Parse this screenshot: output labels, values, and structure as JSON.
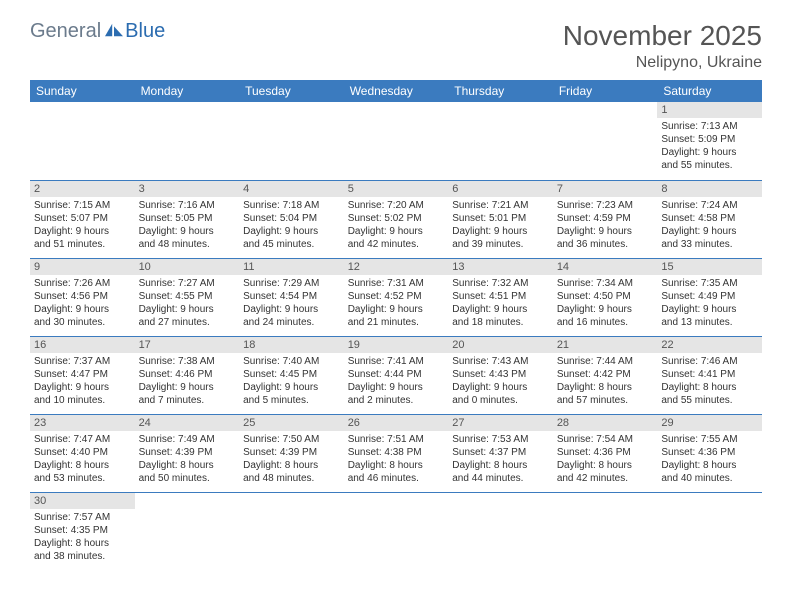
{
  "brand": {
    "part1": "General",
    "part2": "Blue"
  },
  "title": "November 2025",
  "location": "Nelipyno, Ukraine",
  "colors": {
    "header_bg": "#3b7bbf",
    "header_text": "#ffffff",
    "daynum_bg": "#e5e5e5",
    "border": "#3b7bbf",
    "body_text": "#333333",
    "title_text": "#555555",
    "logo_gray": "#6b7b8c",
    "logo_blue": "#2b6cb0",
    "background": "#ffffff"
  },
  "fonts": {
    "title_size_pt": 28,
    "location_size_pt": 16,
    "header_size_pt": 12,
    "cell_size_pt": 10,
    "family": "Arial"
  },
  "weekdays": [
    "Sunday",
    "Monday",
    "Tuesday",
    "Wednesday",
    "Thursday",
    "Friday",
    "Saturday"
  ],
  "weeks": [
    [
      null,
      null,
      null,
      null,
      null,
      null,
      {
        "n": "1",
        "sr": "Sunrise: 7:13 AM",
        "ss": "Sunset: 5:09 PM",
        "dl1": "Daylight: 9 hours",
        "dl2": "and 55 minutes."
      }
    ],
    [
      {
        "n": "2",
        "sr": "Sunrise: 7:15 AM",
        "ss": "Sunset: 5:07 PM",
        "dl1": "Daylight: 9 hours",
        "dl2": "and 51 minutes."
      },
      {
        "n": "3",
        "sr": "Sunrise: 7:16 AM",
        "ss": "Sunset: 5:05 PM",
        "dl1": "Daylight: 9 hours",
        "dl2": "and 48 minutes."
      },
      {
        "n": "4",
        "sr": "Sunrise: 7:18 AM",
        "ss": "Sunset: 5:04 PM",
        "dl1": "Daylight: 9 hours",
        "dl2": "and 45 minutes."
      },
      {
        "n": "5",
        "sr": "Sunrise: 7:20 AM",
        "ss": "Sunset: 5:02 PM",
        "dl1": "Daylight: 9 hours",
        "dl2": "and 42 minutes."
      },
      {
        "n": "6",
        "sr": "Sunrise: 7:21 AM",
        "ss": "Sunset: 5:01 PM",
        "dl1": "Daylight: 9 hours",
        "dl2": "and 39 minutes."
      },
      {
        "n": "7",
        "sr": "Sunrise: 7:23 AM",
        "ss": "Sunset: 4:59 PM",
        "dl1": "Daylight: 9 hours",
        "dl2": "and 36 minutes."
      },
      {
        "n": "8",
        "sr": "Sunrise: 7:24 AM",
        "ss": "Sunset: 4:58 PM",
        "dl1": "Daylight: 9 hours",
        "dl2": "and 33 minutes."
      }
    ],
    [
      {
        "n": "9",
        "sr": "Sunrise: 7:26 AM",
        "ss": "Sunset: 4:56 PM",
        "dl1": "Daylight: 9 hours",
        "dl2": "and 30 minutes."
      },
      {
        "n": "10",
        "sr": "Sunrise: 7:27 AM",
        "ss": "Sunset: 4:55 PM",
        "dl1": "Daylight: 9 hours",
        "dl2": "and 27 minutes."
      },
      {
        "n": "11",
        "sr": "Sunrise: 7:29 AM",
        "ss": "Sunset: 4:54 PM",
        "dl1": "Daylight: 9 hours",
        "dl2": "and 24 minutes."
      },
      {
        "n": "12",
        "sr": "Sunrise: 7:31 AM",
        "ss": "Sunset: 4:52 PM",
        "dl1": "Daylight: 9 hours",
        "dl2": "and 21 minutes."
      },
      {
        "n": "13",
        "sr": "Sunrise: 7:32 AM",
        "ss": "Sunset: 4:51 PM",
        "dl1": "Daylight: 9 hours",
        "dl2": "and 18 minutes."
      },
      {
        "n": "14",
        "sr": "Sunrise: 7:34 AM",
        "ss": "Sunset: 4:50 PM",
        "dl1": "Daylight: 9 hours",
        "dl2": "and 16 minutes."
      },
      {
        "n": "15",
        "sr": "Sunrise: 7:35 AM",
        "ss": "Sunset: 4:49 PM",
        "dl1": "Daylight: 9 hours",
        "dl2": "and 13 minutes."
      }
    ],
    [
      {
        "n": "16",
        "sr": "Sunrise: 7:37 AM",
        "ss": "Sunset: 4:47 PM",
        "dl1": "Daylight: 9 hours",
        "dl2": "and 10 minutes."
      },
      {
        "n": "17",
        "sr": "Sunrise: 7:38 AM",
        "ss": "Sunset: 4:46 PM",
        "dl1": "Daylight: 9 hours",
        "dl2": "and 7 minutes."
      },
      {
        "n": "18",
        "sr": "Sunrise: 7:40 AM",
        "ss": "Sunset: 4:45 PM",
        "dl1": "Daylight: 9 hours",
        "dl2": "and 5 minutes."
      },
      {
        "n": "19",
        "sr": "Sunrise: 7:41 AM",
        "ss": "Sunset: 4:44 PM",
        "dl1": "Daylight: 9 hours",
        "dl2": "and 2 minutes."
      },
      {
        "n": "20",
        "sr": "Sunrise: 7:43 AM",
        "ss": "Sunset: 4:43 PM",
        "dl1": "Daylight: 9 hours",
        "dl2": "and 0 minutes."
      },
      {
        "n": "21",
        "sr": "Sunrise: 7:44 AM",
        "ss": "Sunset: 4:42 PM",
        "dl1": "Daylight: 8 hours",
        "dl2": "and 57 minutes."
      },
      {
        "n": "22",
        "sr": "Sunrise: 7:46 AM",
        "ss": "Sunset: 4:41 PM",
        "dl1": "Daylight: 8 hours",
        "dl2": "and 55 minutes."
      }
    ],
    [
      {
        "n": "23",
        "sr": "Sunrise: 7:47 AM",
        "ss": "Sunset: 4:40 PM",
        "dl1": "Daylight: 8 hours",
        "dl2": "and 53 minutes."
      },
      {
        "n": "24",
        "sr": "Sunrise: 7:49 AM",
        "ss": "Sunset: 4:39 PM",
        "dl1": "Daylight: 8 hours",
        "dl2": "and 50 minutes."
      },
      {
        "n": "25",
        "sr": "Sunrise: 7:50 AM",
        "ss": "Sunset: 4:39 PM",
        "dl1": "Daylight: 8 hours",
        "dl2": "and 48 minutes."
      },
      {
        "n": "26",
        "sr": "Sunrise: 7:51 AM",
        "ss": "Sunset: 4:38 PM",
        "dl1": "Daylight: 8 hours",
        "dl2": "and 46 minutes."
      },
      {
        "n": "27",
        "sr": "Sunrise: 7:53 AM",
        "ss": "Sunset: 4:37 PM",
        "dl1": "Daylight: 8 hours",
        "dl2": "and 44 minutes."
      },
      {
        "n": "28",
        "sr": "Sunrise: 7:54 AM",
        "ss": "Sunset: 4:36 PM",
        "dl1": "Daylight: 8 hours",
        "dl2": "and 42 minutes."
      },
      {
        "n": "29",
        "sr": "Sunrise: 7:55 AM",
        "ss": "Sunset: 4:36 PM",
        "dl1": "Daylight: 8 hours",
        "dl2": "and 40 minutes."
      }
    ],
    [
      {
        "n": "30",
        "sr": "Sunrise: 7:57 AM",
        "ss": "Sunset: 4:35 PM",
        "dl1": "Daylight: 8 hours",
        "dl2": "and 38 minutes."
      },
      null,
      null,
      null,
      null,
      null,
      null
    ]
  ]
}
